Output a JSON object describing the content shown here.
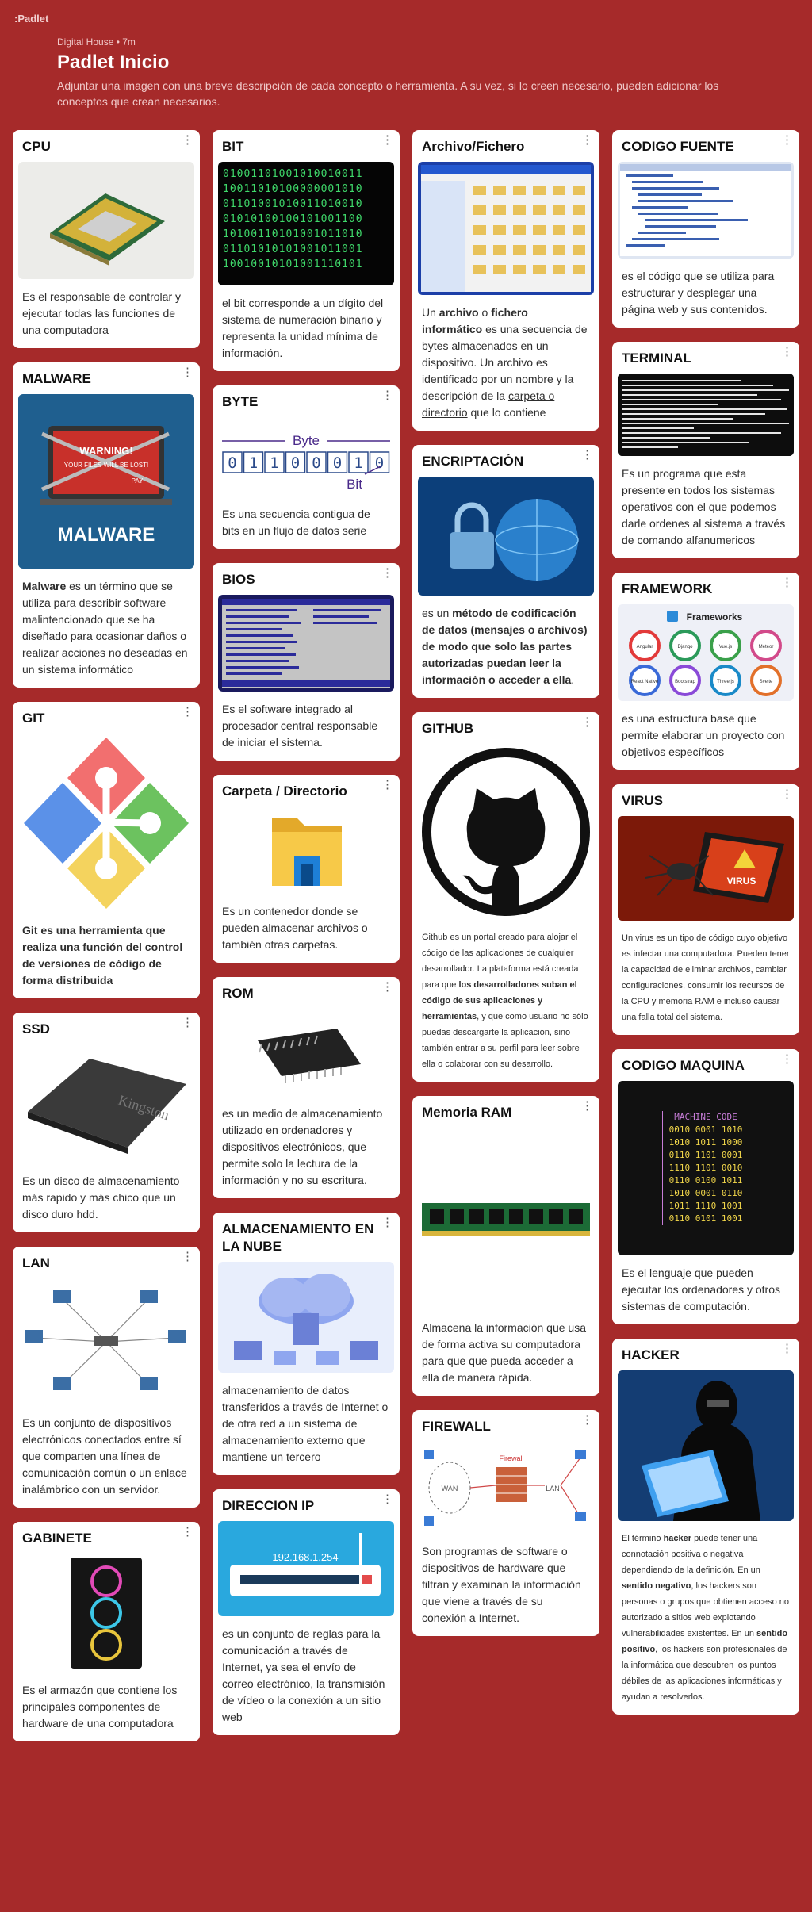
{
  "page": {
    "logo": ":Padlet",
    "meta": "Digital House • 7m",
    "title": "Padlet Inicio",
    "description": "Adjuntar una imagen con una breve descripción de cada concepto o herramienta. A su vez, si lo creen necesario, pueden adicionar los conceptos que crean necesarios."
  },
  "menu_glyph": "⋮",
  "cards": {
    "cpu": {
      "title": "CPU",
      "text": "Es el responsable de controlar y ejecutar todas las funciones de una computadora"
    },
    "malware": {
      "title": "MALWARE",
      "image_text": "MALWARE",
      "image_warning": "WARNING!",
      "image_warning_sub": "YOUR FILES WILL BE LOST!",
      "image_pay": "PAY",
      "bold": "Malware",
      "text": " es un término que se utiliza para describir software malintencionado que se ha diseñado para ocasionar daños o realizar acciones no deseadas en un sistema informático"
    },
    "git": {
      "title": "GIT",
      "text": "Git es una herramienta que realiza una función del control de versiones de código de forma distribuida"
    },
    "ssd": {
      "title": "SSD",
      "image_text": "Kingston",
      "text": "Es un disco de almacenamiento más rapido y más chico que un disco duro hdd."
    },
    "lan": {
      "title": "LAN",
      "text": "Es un conjunto de dispositivos electrónicos conectados entre sí que comparten una línea de comunicación común o un enlace inalámbrico con un servidor."
    },
    "gabinete": {
      "title": "GABINETE",
      "text": "Es el armazón que contiene los principales componentes de hardware de una computadora"
    },
    "bit": {
      "title": "BIT",
      "text": "el bit corresponde a un dígito del sistema de numeración binario y representa la unidad mínima de información."
    },
    "byte": {
      "title": "BYTE",
      "image_byte": "Byte",
      "image_bits": [
        "0",
        "1",
        "1",
        "0",
        "0",
        "0",
        "1",
        "0"
      ],
      "image_bit": "Bit",
      "text": "Es una secuencia contigua de bits en un flujo de datos serie"
    },
    "bios": {
      "title": "BIOS",
      "text": "Es el software integrado al procesador central responsable de iniciar el sistema."
    },
    "carpeta": {
      "title": "Carpeta / Directorio",
      "text": "Es un contenedor donde se pueden almacenar archivos o también otras carpetas."
    },
    "rom": {
      "title": "ROM",
      "text": "es un medio de almacenamiento utilizado en ordenadores y dispositivos electrónicos, que permite solo la lectura de la información y no su escritura."
    },
    "nube": {
      "title": "ALMACENAMIENTO EN LA NUBE",
      "text": "almacenamiento de datos transferidos a través de Internet o de otra red a un sistema de almacenamiento externo que mantiene un tercero"
    },
    "ip": {
      "title": "DIRECCION IP",
      "image_text": "192.168.1.254",
      "text": " es un conjunto de reglas para la comunicación a través de Internet, ya sea el envío de correo electrónico, la transmisión de vídeo o la conexión a un sitio web"
    },
    "archivo": {
      "title": "Archivo/Fichero",
      "p1": "Un ",
      "b1": "archivo",
      "p2": " o ",
      "b2": "fichero informático",
      "p3": " es una secuencia de ",
      "u1": "bytes",
      "p4": " almacenados en un dispositivo. Un archivo es identificado por un nombre y la descripción de la ",
      "u2": "carpeta o directorio",
      "p5": " que lo contiene"
    },
    "encriptacion": {
      "title": "ENCRIPTACIÓN",
      "p1": "es un ",
      "b1": "método de codificación de datos (mensajes o archivos) de modo que solo las partes autorizadas puedan leer la información o acceder a ella",
      "p2": "."
    },
    "github": {
      "title": "GITHUB",
      "p1": "Github es un portal creado para alojar el código de las aplicaciones de cualquier desarrollador. La plataforma está creada para que ",
      "b1": "los desarrolladores suban el código de sus aplicaciones y herramientas",
      "p2": ", y que como usuario no sólo puedas descargarte la aplicación, sino también entrar a su perfil para leer sobre ella o colaborar con su desarrollo."
    },
    "ram": {
      "title": "Memoria RAM",
      "text": "Almacena la información que usa de forma activa su computadora para que que pueda acceder a ella de manera rápida."
    },
    "firewall": {
      "title": "FIREWALL",
      "image_fw": "Firewall",
      "image_wan": "WAN",
      "image_lan": "LAN",
      "text": "Son programas de software o dispositivos de hardware que filtran y examinan la información que viene a través de su conexión a Internet."
    },
    "codigo_fuente": {
      "title": "CODIGO FUENTE",
      "text": "es el código que se utiliza para estructurar y desplegar una página web y sus contenidos."
    },
    "terminal": {
      "title": "TERMINAL",
      "text": "Es un programa que esta presente en todos los sistemas operativos con el que podemos darle ordenes al sistema a través de comando alfanumericos"
    },
    "framework": {
      "title": "FRAMEWORK",
      "image_title": "Frameworks",
      "image_items": [
        "Angular",
        "Django",
        "Vue.js",
        "Meteor",
        "React Native",
        "Bootstrap",
        "Three.js",
        "Svelte"
      ],
      "text": "es una estructura base que permite elaborar un proyecto con objetivos específicos"
    },
    "virus": {
      "title": "VIRUS",
      "image_text": "VIRUS",
      "text": "Un virus es un tipo de código cuyo objetivo es infectar una computadora. Pueden tener la capacidad de eliminar archivos, cambiar configuraciones, consumir los recursos de la CPU y memoria RAM e incluso causar una falla total del sistema."
    },
    "codigo_maquina": {
      "title": "CODIGO MAQUINA",
      "image_title": "MACHINE CODE",
      "image_rows": [
        "0010 0001 1010",
        "1010 1011 1000",
        "0110 1101 0001",
        "1110 1101 0010",
        "0110 0100 1011",
        "1010 0001 0110",
        "1011 1110 1001",
        "0110 0101 1001"
      ],
      "text": "Es el lenguaje que pueden ejecutar los ordenadores y otros sistemas de computación."
    },
    "hacker": {
      "title": "HACKER",
      "p1": "El término ",
      "b1": "hacker",
      "p2": " puede tener una connotación positiva o negativa dependiendo de la definición. En un ",
      "b2": "sentido negativo",
      "p3": ", los hackers son personas o grupos que obtienen acceso no autorizado a sitios web explotando vulnerabilidades existentes. En un ",
      "b3": "sentido positivo",
      "p4": ", los hackers son profesionales de la informática que descubren los puntos débiles de las aplicaciones informáticas y ayudan a resolverlos."
    }
  }
}
